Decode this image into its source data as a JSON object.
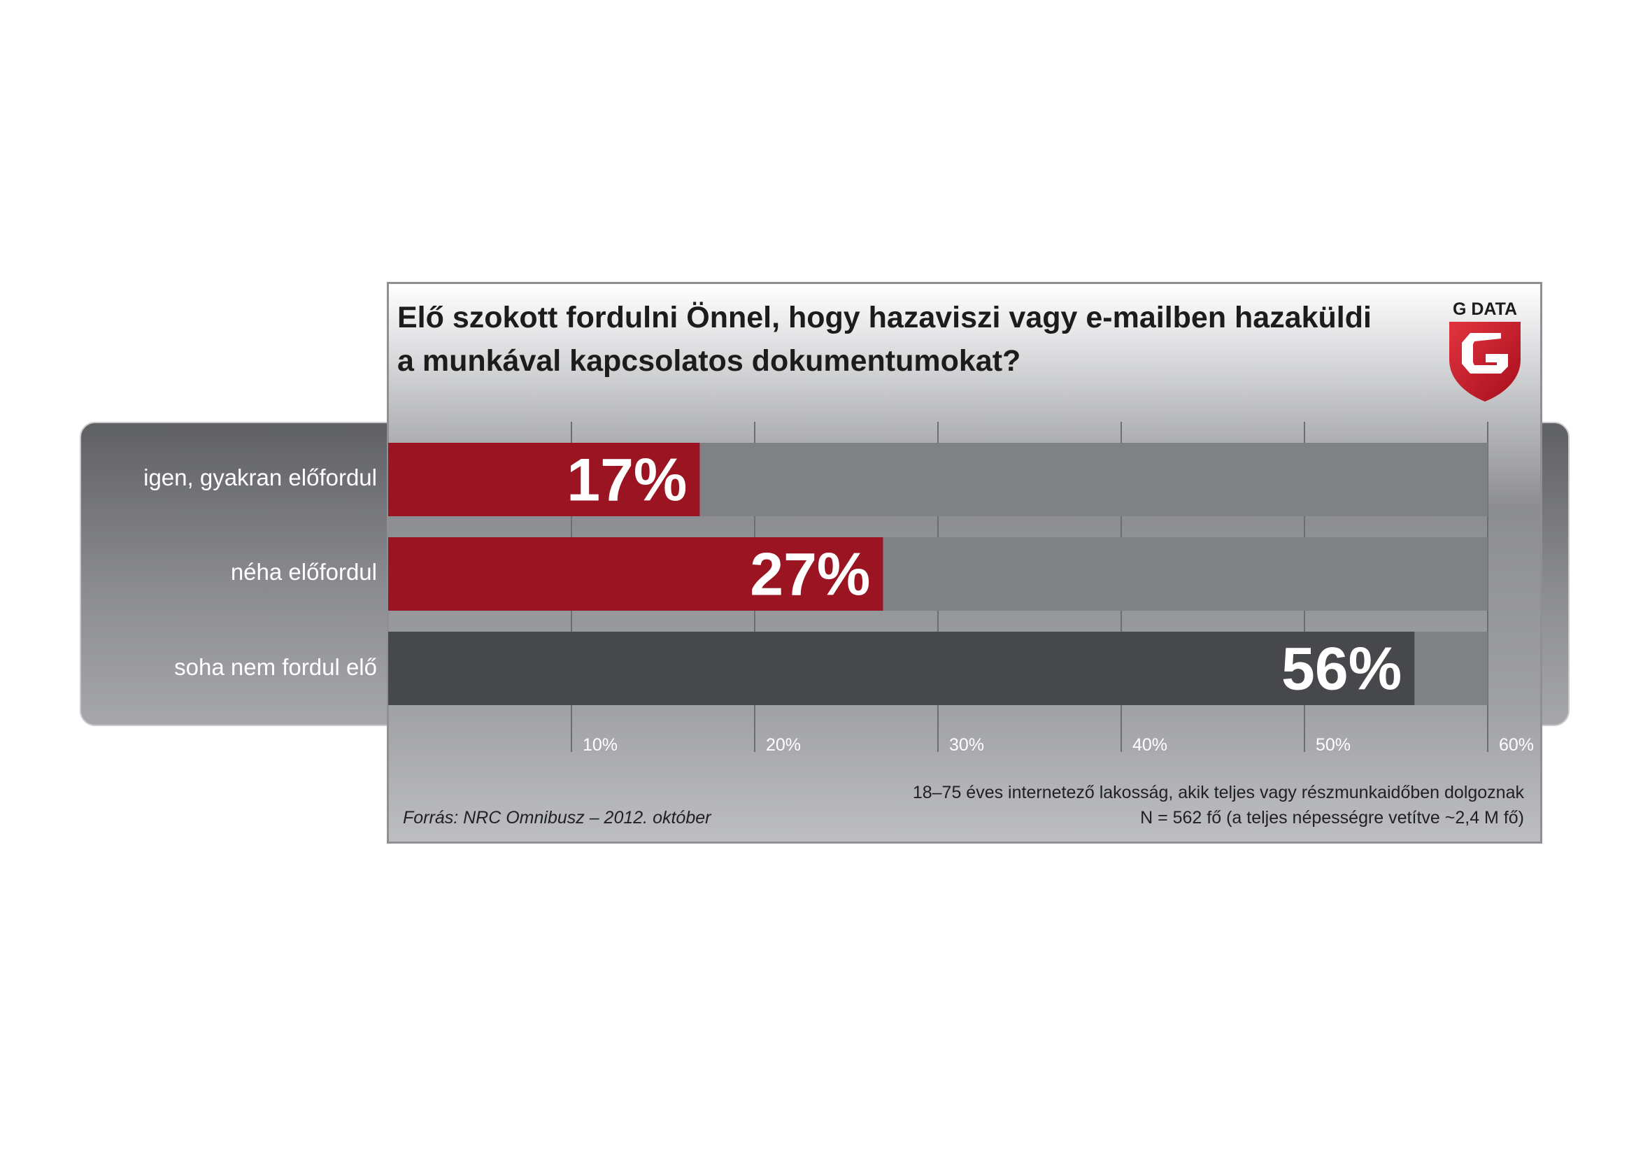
{
  "chart_data": {
    "type": "bar",
    "orientation": "horizontal",
    "title": "Elő szokott fordulni Önnel, hogy hazaviszi vagy e-mailben hazaküldi a munkával kapcsolatos dokumentumokat?",
    "categories": [
      "igen, gyakran előfordul",
      "néha előfordul",
      "soha nem fordul elő"
    ],
    "values": [
      17,
      27,
      56
    ],
    "value_labels": [
      "17%",
      "27%",
      "56%"
    ],
    "bar_colors": [
      "#9b1421",
      "#9b1421",
      "#47484b"
    ],
    "track_color": "#808185",
    "xlim": [
      0,
      60
    ],
    "x_ticks": [
      10,
      20,
      30,
      40,
      50,
      60
    ],
    "x_tick_labels": [
      "10%",
      "20%",
      "30%",
      "40%",
      "50%",
      "60%"
    ],
    "grid": true
  },
  "footnote": {
    "line1": "18–75 éves internetező lakosság, akik teljes vagy részmunkaidőben dolgoznak",
    "line2": "N = 562 fő (a teljes népességre vetítve ~2,4 M fő)"
  },
  "source": "Forrás: NRC Omnibusz – 2012. október",
  "logo": {
    "text": "G DATA",
    "icon": "g-data-shield-logo",
    "color": "#c8102e"
  }
}
